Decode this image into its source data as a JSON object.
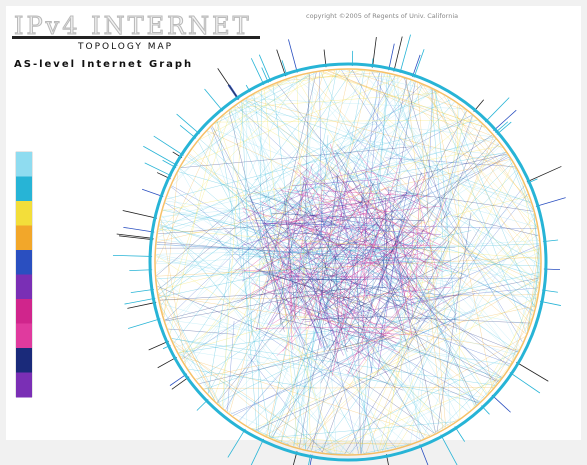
{
  "diagram": {
    "title": "IPv4 INTERNET",
    "subtitle": "TOPOLOGY MAP",
    "caption": "AS-level Internet Graph",
    "copyright": "copyright ©2005 of Regents of Univ. California",
    "legend_labels": [
      "",
      "",
      "",
      "",
      "",
      "",
      "",
      "",
      "",
      ""
    ]
  },
  "palette": {
    "cyan": "#27b4d6",
    "light_cyan": "#8fdcf0",
    "orange": "#f2a72a",
    "yellow": "#f3de3a",
    "blue": "#2a4fc0",
    "navy": "#1a2a7a",
    "magenta": "#d0258c",
    "pink": "#e03a9e",
    "purple": "#7a2fb5"
  }
}
